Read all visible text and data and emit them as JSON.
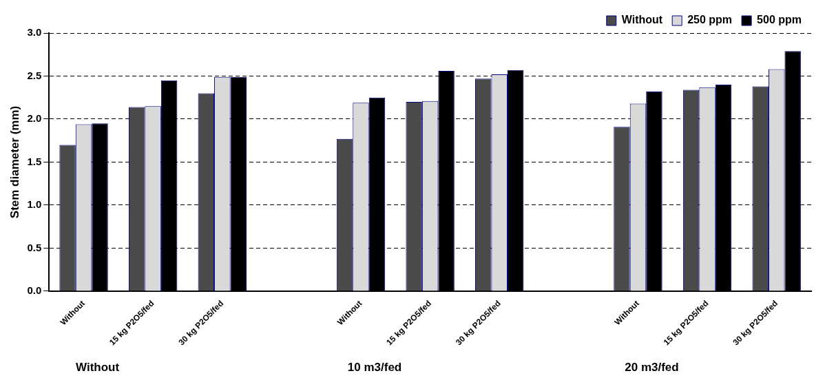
{
  "chart_data": {
    "type": "bar",
    "ylabel": "Stem diameter (mm)",
    "categories": [
      "Without",
      "15 kg P2O5/fed",
      "30 kg P2O5/fed",
      null,
      "Without",
      "15 kg P2O5/fed",
      "30 kg P2O5/fed",
      null,
      "Without",
      "15 kg P2O5/fed",
      "30 kg P2O5/fed"
    ],
    "series": [
      {
        "name": "Without",
        "color": "#4a4a4a",
        "values": [
          1.7,
          2.14,
          2.3,
          null,
          1.77,
          2.2,
          2.47,
          null,
          1.91,
          2.34,
          2.38
        ]
      },
      {
        "name": "250 ppm",
        "color": "#d9d9d9",
        "values": [
          1.94,
          2.15,
          2.49,
          null,
          2.19,
          2.21,
          2.52,
          null,
          2.18,
          2.37,
          2.58
        ]
      },
      {
        "name": "500 ppm",
        "color": "#000000",
        "values": [
          1.95,
          2.45,
          2.49,
          null,
          2.25,
          2.56,
          2.57,
          null,
          2.32,
          2.4,
          2.79
        ]
      }
    ],
    "ylim": [
      0,
      3
    ],
    "yticks": [
      {
        "value": 0,
        "label": "0.0"
      },
      {
        "value": 0.5,
        "label": "0.5"
      },
      {
        "value": 1,
        "label": "1.0"
      },
      {
        "value": 1.5,
        "label": "1.5"
      },
      {
        "value": 2,
        "label": "2.0"
      },
      {
        "value": 2.5,
        "label": "2.5"
      },
      {
        "value": 3,
        "label": "3.0"
      }
    ],
    "grid": "y",
    "legend": "top",
    "annotations": [
      "Without",
      "10 m3/fed",
      "20 m3/fed"
    ]
  }
}
